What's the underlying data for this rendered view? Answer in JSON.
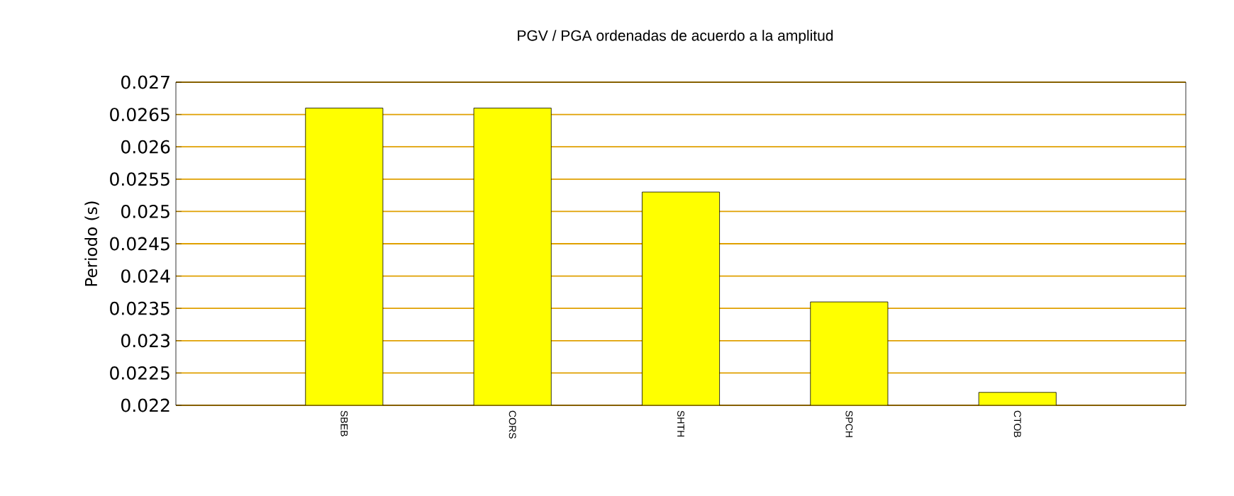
{
  "chart_data": {
    "type": "bar",
    "title": "PGV / PGA ordenadas de acuerdo a la amplitud",
    "ylabel": "Periodo (s)",
    "categories": [
      "SBEB",
      "CORS",
      "SHTH",
      "SPCH",
      "CTOB"
    ],
    "values": [
      0.0266,
      0.0266,
      0.0253,
      0.0236,
      0.0222
    ],
    "color": "#ffff00",
    "ylim": [
      0.022,
      0.027
    ],
    "yticks": [
      0.022,
      0.0225,
      0.023,
      0.0235,
      0.024,
      0.0245,
      0.025,
      0.0255,
      0.026,
      0.0265,
      0.027
    ],
    "grid": "y"
  }
}
